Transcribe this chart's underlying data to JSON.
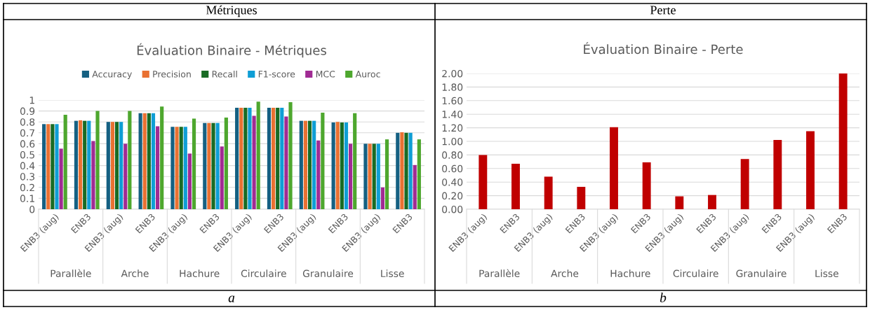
{
  "chart_data": [
    {
      "type": "bar",
      "title": "Évaluation Binaire - Métriques",
      "categories": [
        "ENB3 (aug)",
        "ENB3",
        "ENB3 (aug)",
        "ENB3",
        "ENB3 (aug)",
        "ENB3",
        "ENB3 (aug)",
        "ENB3",
        "ENB3 (aug)",
        "ENB3",
        "ENB3 (aug)",
        "ENB3"
      ],
      "series": [
        {
          "name": "Accuracy",
          "color": "#156082",
          "values": [
            0.78,
            0.81,
            0.8,
            0.88,
            0.755,
            0.79,
            0.93,
            0.93,
            0.81,
            0.795,
            0.6,
            0.7
          ]
        },
        {
          "name": "Precision",
          "color": "#e97132",
          "values": [
            0.78,
            0.815,
            0.8,
            0.88,
            0.755,
            0.79,
            0.93,
            0.93,
            0.81,
            0.8,
            0.6,
            0.705
          ]
        },
        {
          "name": "Recall",
          "color": "#196b24",
          "values": [
            0.78,
            0.81,
            0.8,
            0.88,
            0.755,
            0.79,
            0.93,
            0.93,
            0.81,
            0.795,
            0.6,
            0.7
          ]
        },
        {
          "name": "F1-score",
          "color": "#0f9ed5",
          "values": [
            0.78,
            0.81,
            0.8,
            0.88,
            0.755,
            0.79,
            0.93,
            0.93,
            0.81,
            0.795,
            0.6,
            0.7
          ]
        },
        {
          "name": "MCC",
          "color": "#a02b93",
          "values": [
            0.555,
            0.625,
            0.6,
            0.76,
            0.51,
            0.575,
            0.855,
            0.85,
            0.63,
            0.6,
            0.2,
            0.405
          ]
        },
        {
          "name": "Auroc",
          "color": "#4ea72e",
          "values": [
            0.865,
            0.9,
            0.9,
            0.94,
            0.83,
            0.84,
            0.985,
            0.98,
            0.885,
            0.88,
            0.64,
            0.64
          ]
        }
      ],
      "ylim": [
        0,
        1
      ],
      "yticks": [
        0,
        0.1,
        0.2,
        0.3,
        0.4,
        0.5,
        0.6,
        0.7,
        0.8,
        0.9,
        1
      ],
      "grid": "y",
      "legend": "top",
      "annotations": [
        "Métriques",
        "Parallèle",
        "Arche",
        "Hachure",
        "Circulaire",
        "Granulaire",
        "Lisse",
        "a"
      ]
    },
    {
      "type": "bar",
      "title": "Évaluation Binaire - Perte",
      "categories": [
        "ENB3 (aug)",
        "ENB3",
        "ENB3 (aug)",
        "ENB3",
        "ENB3 (aug)",
        "ENB3",
        "ENB3 (aug)",
        "ENB3",
        "ENB3 (aug)",
        "ENB3",
        "ENB3 (aug)",
        "ENB3"
      ],
      "values": [
        0.8,
        0.67,
        0.48,
        0.33,
        1.21,
        0.69,
        0.19,
        0.21,
        0.74,
        1.02,
        1.15,
        2.0
      ],
      "color": "#c00000",
      "ylim": [
        0,
        2
      ],
      "yticks": [
        {
          "value": 0,
          "label": "0.00"
        },
        {
          "value": 0.2,
          "label": "0.20"
        },
        {
          "value": 0.4,
          "label": "0.40"
        },
        {
          "value": 0.6,
          "label": "0.60"
        },
        {
          "value": 0.8,
          "label": "0.80"
        },
        {
          "value": 1,
          "label": "1.00"
        },
        {
          "value": 1.2,
          "label": "1.20"
        },
        {
          "value": 1.4,
          "label": "1.40"
        },
        {
          "value": 1.6,
          "label": "1.60"
        },
        {
          "value": 1.8,
          "label": "1.80"
        },
        {
          "value": 2,
          "label": "2.00"
        }
      ],
      "grid": "y",
      "annotations": [
        "Perte",
        "Parallèle",
        "Arche",
        "Hachure",
        "Circulaire",
        "Granulaire",
        "Lisse",
        "b"
      ]
    }
  ]
}
